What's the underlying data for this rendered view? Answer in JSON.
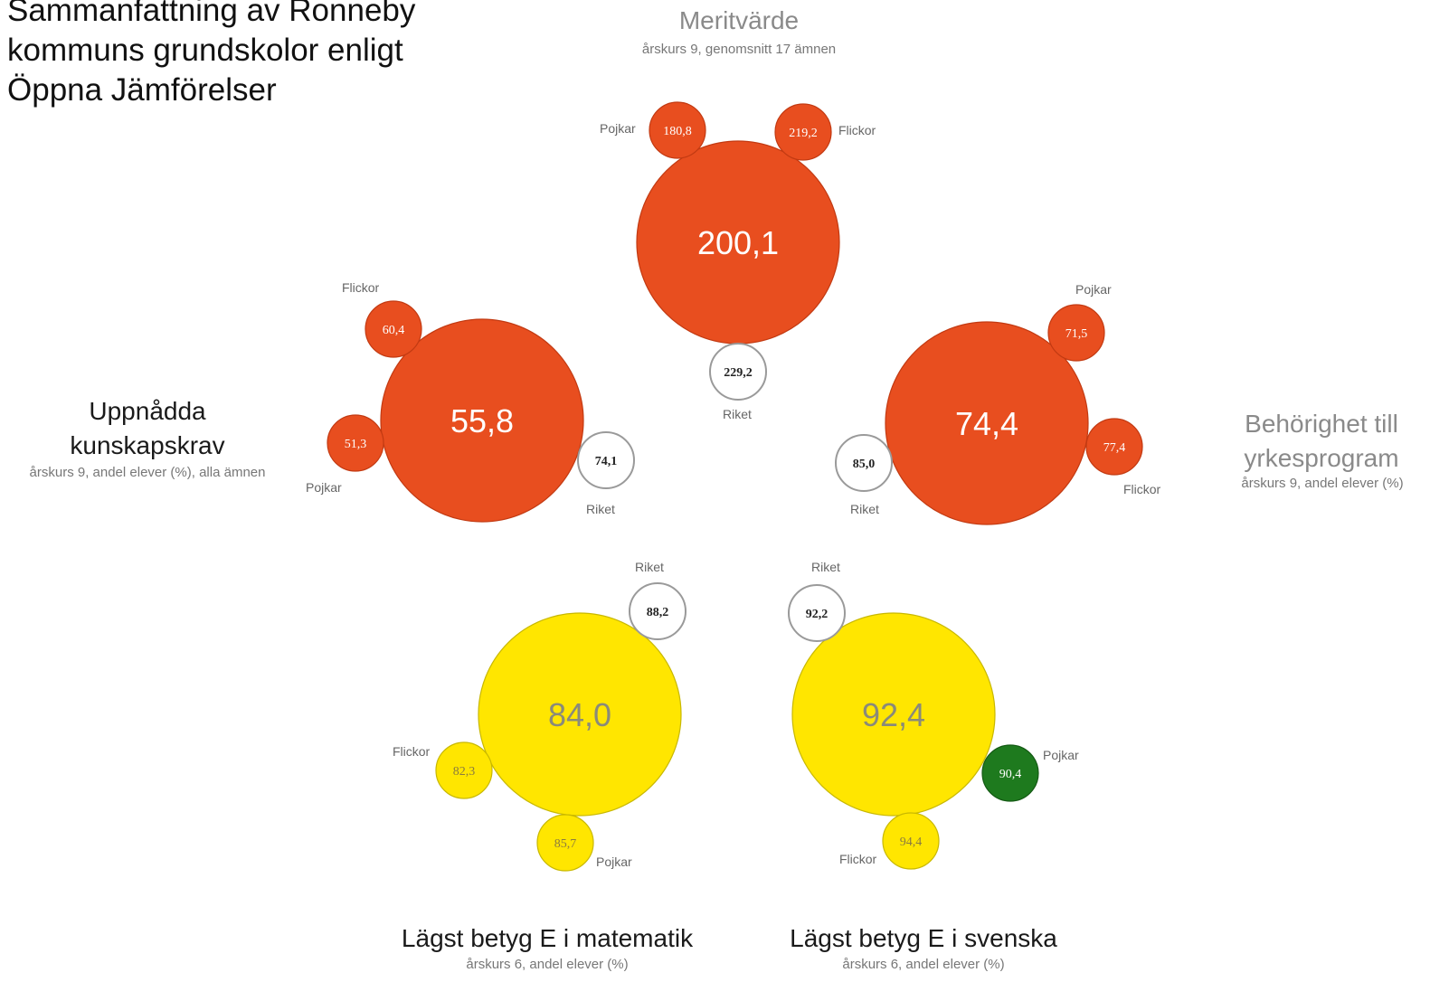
{
  "title_lines": [
    "Sammanfattning av Ronneby",
    "kommuns grundskolor enligt",
    "Öppna Jämförelser"
  ],
  "colors": {
    "red": "#E84E1F",
    "yellow": "#FFE600",
    "green": "#1E7A1E",
    "white": "#ffffff",
    "ring_grey": "#9a9a9a"
  },
  "metrics": {
    "meritvarde": {
      "title": "Meritvärde",
      "subtitle": "årskurs 9, genomsnitt 17 ämnen",
      "main": {
        "value": "200,1",
        "color": "red"
      },
      "pojkar": {
        "label": "Pojkar",
        "value": "180,8",
        "color": "red"
      },
      "flickor": {
        "label": "Flickor",
        "value": "219,2",
        "color": "red"
      },
      "riket": {
        "label": "Riket",
        "value": "229,2",
        "color": "white"
      }
    },
    "kunskapskrav": {
      "title_lines": [
        "Uppnådda",
        "kunskapskrav"
      ],
      "subtitle": "årskurs 9, andel elever (%), alla ämnen",
      "main": {
        "value": "55,8",
        "color": "red"
      },
      "flickor": {
        "label": "Flickor",
        "value": "60,4",
        "color": "red"
      },
      "pojkar": {
        "label": "Pojkar",
        "value": "51,3",
        "color": "red"
      },
      "riket": {
        "label": "Riket",
        "value": "74,1",
        "color": "white"
      }
    },
    "yrkesprogram": {
      "title_lines": [
        "Behörighet till",
        "yrkesprogram"
      ],
      "subtitle": "årskurs 9, andel elever (%)",
      "main": {
        "value": "74,4",
        "color": "red"
      },
      "pojkar": {
        "label": "Pojkar",
        "value": "71,5",
        "color": "red"
      },
      "flickor": {
        "label": "Flickor",
        "value": "77,4",
        "color": "red"
      },
      "riket": {
        "label": "Riket",
        "value": "85,0",
        "color": "white"
      }
    },
    "matematik": {
      "title": "Lägst betyg E i matematik",
      "subtitle": "årskurs  6, andel elever (%)",
      "main": {
        "value": "84,0",
        "color": "yellow"
      },
      "riket": {
        "label": "Riket",
        "value": "88,2",
        "color": "white"
      },
      "flickor": {
        "label": "Flickor",
        "value": "82,3",
        "color": "yellow"
      },
      "pojkar": {
        "label": "Pojkar",
        "value": "85,7",
        "color": "yellow"
      }
    },
    "svenska": {
      "title": "Lägst betyg E i svenska",
      "subtitle": "årskurs 6, andel elever (%)",
      "main": {
        "value": "92,4",
        "color": "yellow"
      },
      "riket": {
        "label": "Riket",
        "value": "92,2",
        "color": "white"
      },
      "pojkar": {
        "label": "Pojkar",
        "value": "90,4",
        "color": "green"
      },
      "flickor": {
        "label": "Flickor",
        "value": "94,4",
        "color": "yellow"
      }
    }
  }
}
